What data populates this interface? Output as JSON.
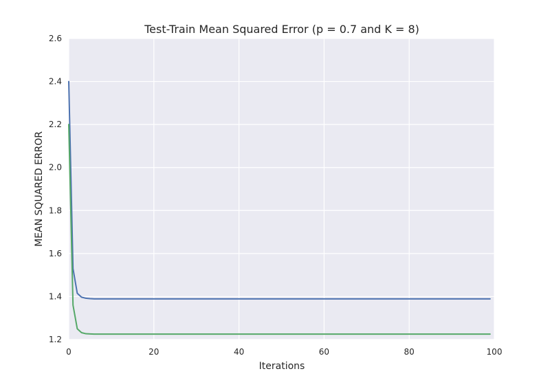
{
  "colors": {
    "plot_background": "#EAEAF2",
    "grid": "#FFFFFF"
  },
  "chart_data": {
    "type": "line",
    "title": "Test-Train Mean Squared Error (p = 0.7 and K = 8)",
    "xlabel": "Iterations",
    "ylabel": "MEAN SQUARED ERROR",
    "xlim": [
      0,
      100
    ],
    "ylim": [
      1.2,
      2.6
    ],
    "xticks": [
      0,
      20,
      40,
      60,
      80,
      100
    ],
    "yticks": [
      1.2,
      1.4,
      1.6,
      1.8,
      2.0,
      2.2,
      2.4,
      2.6
    ],
    "xtick_labels": [
      "0",
      "20",
      "40",
      "60",
      "80",
      "100"
    ],
    "ytick_labels": [
      "1.2",
      "1.4",
      "1.6",
      "1.8",
      "2.0",
      "2.2",
      "2.4",
      "2.6"
    ],
    "grid": true,
    "series": [
      {
        "color": "#4C72B0",
        "points": [
          [
            0,
            2.4
          ],
          [
            1,
            1.53
          ],
          [
            2,
            1.415
          ],
          [
            3,
            1.397
          ],
          [
            4,
            1.392
          ],
          [
            5,
            1.39
          ],
          [
            6,
            1.389
          ],
          [
            10,
            1.389
          ],
          [
            99,
            1.389
          ]
        ]
      },
      {
        "color": "#55A868",
        "points": [
          [
            0,
            2.2
          ],
          [
            1,
            1.36
          ],
          [
            2,
            1.25
          ],
          [
            3,
            1.232
          ],
          [
            4,
            1.227
          ],
          [
            5,
            1.226
          ],
          [
            6,
            1.225
          ],
          [
            10,
            1.225
          ],
          [
            99,
            1.225
          ]
        ]
      }
    ]
  }
}
